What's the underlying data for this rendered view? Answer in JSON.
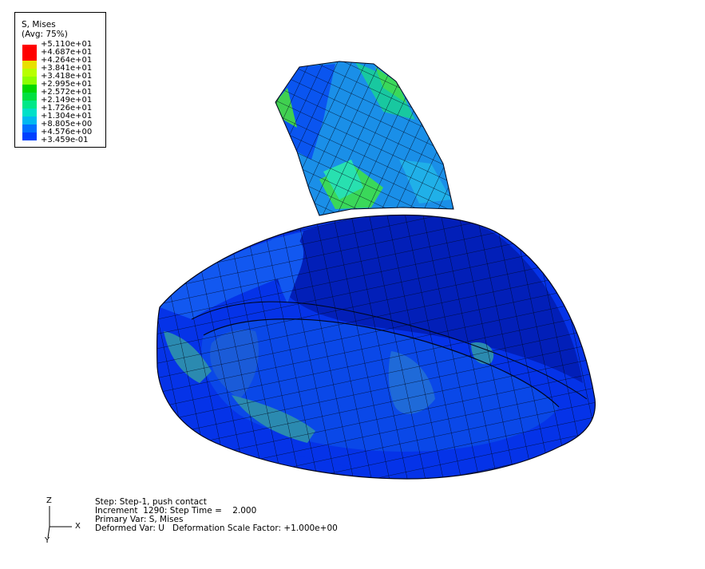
{
  "legend": {
    "title": "S, Mises",
    "subtitle": "(Avg: 75%)",
    "values": [
      "+5.110e+01",
      "+4.687e+01",
      "+4.264e+01",
      "+3.841e+01",
      "+3.418e+01",
      "+2.995e+01",
      "+2.572e+01",
      "+2.149e+01",
      "+1.726e+01",
      "+1.304e+01",
      "+8.805e+00",
      "+4.576e+00",
      "+3.459e-01"
    ],
    "colors": [
      "#ff0000",
      "#ff0000",
      "#e8e000",
      "#b8ff00",
      "#8cff00",
      "#00d800",
      "#00e040",
      "#00e888",
      "#00e0c8",
      "#00b8f0",
      "#0070ff",
      "#0040ff",
      "#0000f0"
    ]
  },
  "triad": {
    "z": "Z",
    "x": "X",
    "y": "Y"
  },
  "info": {
    "step": "Step: Step-1, push contact",
    "increment": "Increment  1290: Step Time =    2.000",
    "primary": "Primary Var: S, Mises",
    "deformed": "Deformed Var: U   Deformation Scale Factor: +1.000e+00"
  },
  "model": {
    "body_color": "#0533e8",
    "dark_color": "#021fb8",
    "mid_color": "#1258f0",
    "tube_light": "#22a8ea",
    "tube_green": "#2cd46a",
    "teal": "#2b8ab0"
  }
}
